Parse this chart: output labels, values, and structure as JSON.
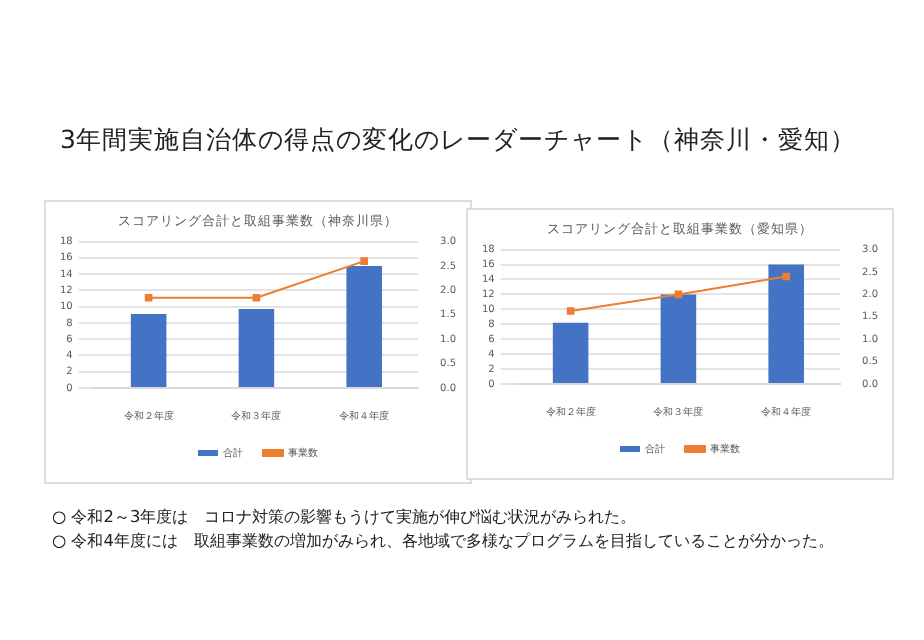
{
  "chart_data": [
    {
      "type": "bar",
      "title": "スコアリング合計と取組事業数（神奈川県）",
      "categories": [
        "令和２年度",
        "令和３年度",
        "令和４年度"
      ],
      "series": [
        {
          "name": "合計",
          "color": "#4472c4",
          "values": [
            9.1,
            9.7,
            15
          ]
        },
        {
          "name": "事業数",
          "type": "line",
          "axis": "y2",
          "color": "#ed7d31",
          "values": [
            1.85,
            1.85,
            2.6
          ]
        }
      ],
      "ylim": [
        0,
        18
      ],
      "yticks": [
        0,
        2,
        4,
        6,
        8,
        10,
        12,
        14,
        16,
        18
      ],
      "y2lim": [
        0,
        3
      ],
      "y2ticks": [
        {
          "value": 0,
          "label": "0.0"
        },
        0.5,
        {
          "value": 1,
          "label": "1.0"
        },
        1.5,
        {
          "value": 2,
          "label": "2.0"
        },
        2.5,
        {
          "value": 3,
          "label": "3.0"
        }
      ],
      "grid": "y",
      "legend": "bottom",
      "marker": "square",
      "line_style": "solid",
      "annotations": [
        "3年間実施自治体の得点の変化のレーダーチャート（神奈川・愛知）"
      ]
    },
    {
      "type": "bar",
      "title": "スコアリング合計と取組事業数（愛知県）",
      "categories": [
        "令和２年度",
        "令和３年度",
        "令和４年度"
      ],
      "series": [
        {
          "name": "合計",
          "color": "#4472c4",
          "values": [
            8.2,
            12,
            16
          ]
        },
        {
          "name": "事業数",
          "type": "line",
          "axis": "y2",
          "color": "#ed7d31",
          "values": [
            1.63,
            2.0,
            2.4
          ]
        }
      ],
      "ylim": [
        0,
        18
      ],
      "yticks": [
        0,
        2,
        4,
        6,
        8,
        10,
        12,
        14,
        16,
        18
      ],
      "y2lim": [
        0,
        3
      ],
      "y2ticks": [
        {
          "value": 0,
          "label": "0.0"
        },
        0.5,
        {
          "value": 1,
          "label": "1.0"
        },
        1.5,
        {
          "value": 2,
          "label": "2.0"
        },
        2.5,
        {
          "value": 3,
          "label": "3.0"
        }
      ],
      "grid": "y",
      "legend": "bottom",
      "marker": "square",
      "line_style": "solid",
      "annotations": [
        "○ 令和2～3年度は　コロナ対策の影響もうけて実施が伸び悩む状況がみられた。",
        "○ 令和4年度には　取組事業数の増加がみられ、各地域で多様なプログラムを目指していることが分かった。"
      ]
    }
  ]
}
